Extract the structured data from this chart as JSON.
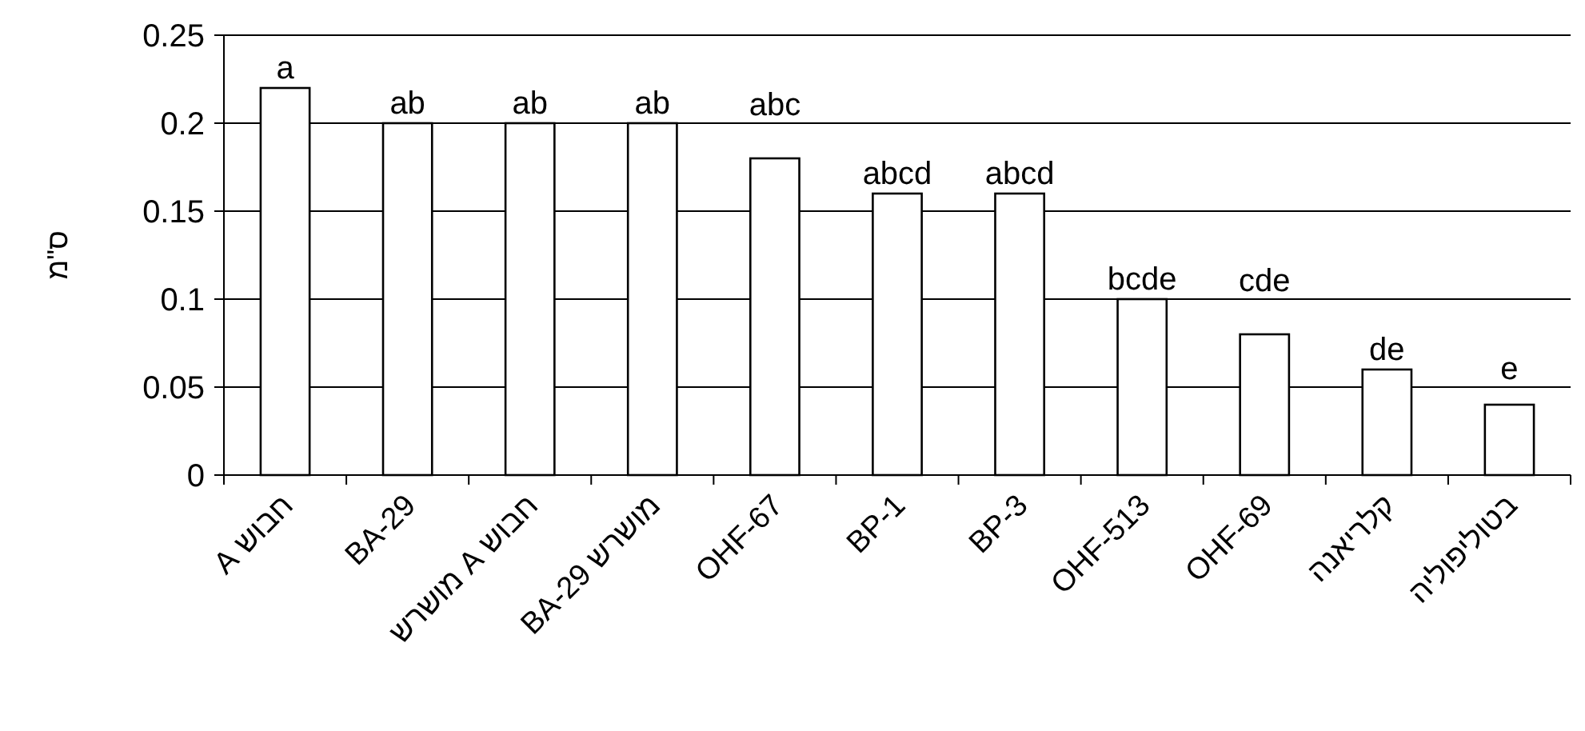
{
  "chart_data": {
    "type": "bar",
    "ylabel": "ס\"מ",
    "categories": [
      "חבוש A",
      "BA-29",
      "חבוש A מושרש",
      "מושרש BA-29",
      "OHF-67",
      "BP-1",
      "BP-3",
      "OHF-513",
      "OHF-69",
      "קלריאנה",
      "בטוליפוליה"
    ],
    "values": [
      0.22,
      0.2,
      0.2,
      0.2,
      0.18,
      0.16,
      0.16,
      0.1,
      0.08,
      0.06,
      0.04
    ],
    "color": "#ffffff",
    "ylim": [
      0,
      0.25
    ],
    "yticks": [
      0,
      0.05,
      0.1,
      0.15,
      0.2,
      0.25
    ],
    "grid": "y",
    "annotations": [
      {
        "text": "a",
        "x": "חבוש A",
        "y": 0.22
      },
      {
        "text": "ab",
        "x": "BA-29",
        "y": 0.2
      },
      {
        "text": "ab",
        "x": "חבוש A מושרש",
        "y": 0.2
      },
      {
        "text": "ab",
        "x": "מושרש BA-29",
        "y": 0.2
      },
      {
        "text": "abc",
        "x": "OHF-67",
        "y": 0.18
      },
      {
        "text": "abcd",
        "x": "BP-1",
        "y": 0.16
      },
      {
        "text": "abcd",
        "x": "BP-3",
        "y": 0.16
      },
      {
        "text": "bcde",
        "x": "OHF-513",
        "y": 0.1
      },
      {
        "text": "cde",
        "x": "OHF-69",
        "y": 0.08
      },
      {
        "text": "de",
        "x": "קלריאנה",
        "y": 0.06
      },
      {
        "text": "e",
        "x": "בטוליפוליה",
        "y": 0.04
      }
    ]
  }
}
